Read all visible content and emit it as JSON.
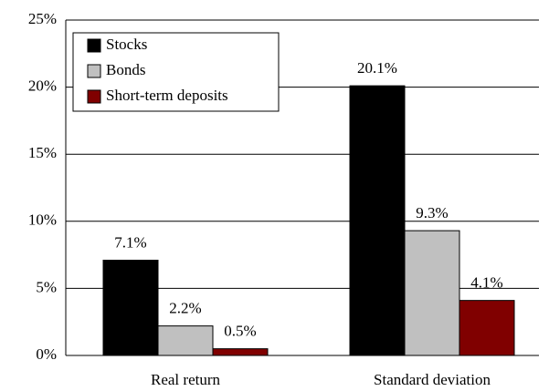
{
  "chart_data": {
    "type": "bar",
    "categories": [
      "Real return",
      "Standard deviation"
    ],
    "series": [
      {
        "name": "Stocks",
        "color": "#000000",
        "values": [
          7.1,
          20.1
        ],
        "value_labels": [
          "7.1%",
          "20.1%"
        ]
      },
      {
        "name": "Bonds",
        "color": "#c0c0c0",
        "values": [
          2.2,
          9.3
        ],
        "value_labels": [
          "2.2%",
          "9.3%"
        ]
      },
      {
        "name": "Short-term deposits",
        "color": "#800000",
        "values": [
          0.5,
          4.1
        ],
        "value_labels": [
          "0.5%",
          "4.1%"
        ]
      }
    ],
    "ylim": [
      0,
      25
    ],
    "yticks": [
      {
        "value": 0,
        "label": "0%"
      },
      {
        "value": 5,
        "label": "5%"
      },
      {
        "value": 10,
        "label": "10%"
      },
      {
        "value": 15,
        "label": "15%"
      },
      {
        "value": 20,
        "label": "20%"
      },
      {
        "value": 25,
        "label": "25%"
      }
    ],
    "grid": true,
    "legend": "top-left"
  }
}
